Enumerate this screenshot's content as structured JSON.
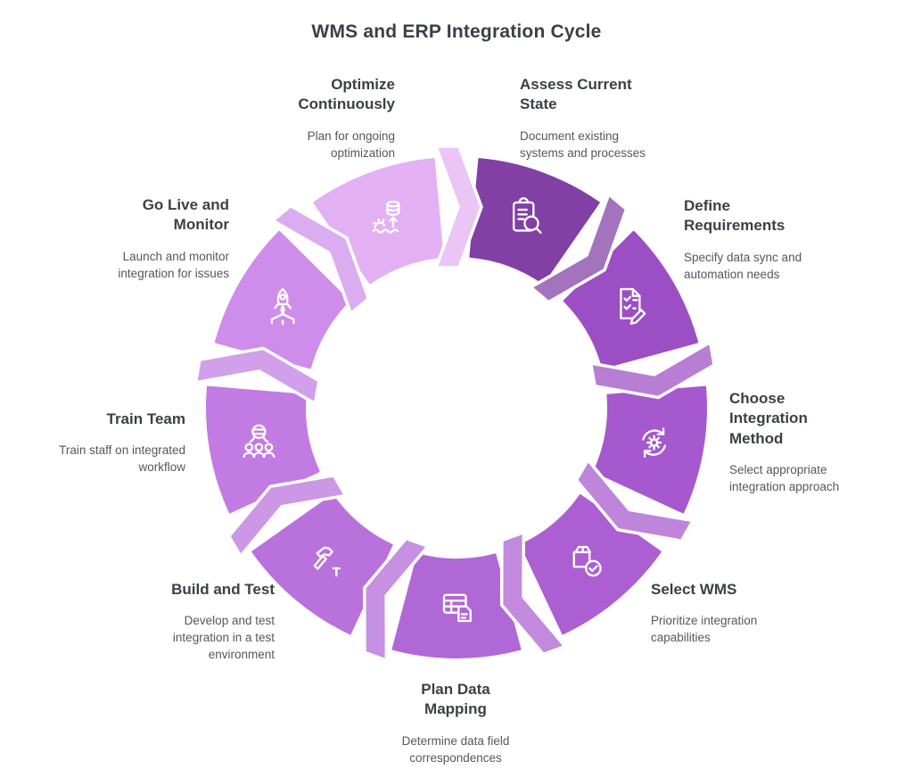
{
  "title": "WMS and ERP Integration Cycle",
  "colors": {
    "background": "#ffffff",
    "title_text": "#3c3f46",
    "heading_text": "#3c3f46",
    "body_text": "#54575e",
    "icon_stroke": "#ffffff"
  },
  "diagram": {
    "type": "cycle",
    "direction": "clockwise",
    "steps": [
      {
        "order": 1,
        "label": "Assess Current State",
        "description": "Document existing systems and processes",
        "icon": "clipboard-search-icon",
        "color": "#823FA4"
      },
      {
        "order": 2,
        "label": "Define Requirements",
        "description": "Specify data sync and automation needs",
        "icon": "checklist-pencil-icon",
        "color": "#9C4EC4"
      },
      {
        "order": 3,
        "label": "Choose Integration Method",
        "description": "Select appropriate integration approach",
        "icon": "sync-gear-icon",
        "color": "#A658CE"
      },
      {
        "order": 4,
        "label": "Select WMS",
        "description": "Prioritize integration capabilities",
        "icon": "package-check-icon",
        "color": "#AC5FD3"
      },
      {
        "order": 5,
        "label": "Plan Data Mapping",
        "description": "Determine data field correspondences",
        "icon": "table-document-icon",
        "color": "#B168D7"
      },
      {
        "order": 6,
        "label": "Build and Test",
        "description": "Develop and test integration in a test environment",
        "icon": "hammer-nail-icon",
        "color": "#B971DC"
      },
      {
        "order": 7,
        "label": "Train Team",
        "description": "Train staff on integrated workflow",
        "icon": "trainer-group-icon",
        "color": "#C27BE2"
      },
      {
        "order": 8,
        "label": "Go Live and Monitor",
        "description": "Launch and monitor integration for issues",
        "icon": "rocket-launch-icon",
        "color": "#CE8DEA"
      },
      {
        "order": 9,
        "label": "Optimize Continuously",
        "description": "Plan for ongoing optimization",
        "icon": "database-optimize-icon",
        "color": "#E2B0F3"
      }
    ]
  }
}
